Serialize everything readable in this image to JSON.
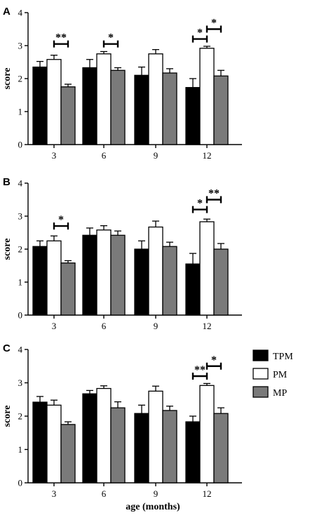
{
  "xlabel": "age (months)",
  "colors": {
    "TPM": "#000000",
    "PM": "#ffffff",
    "MP": "#7a7a7a"
  },
  "legend": [
    "TPM",
    "PM",
    "MP"
  ],
  "chart_data": [
    {
      "type": "bar",
      "panel": "A",
      "ylabel": "score",
      "ylim": [
        0,
        4
      ],
      "yticks": [
        "0",
        "1",
        "2",
        "3",
        "4"
      ],
      "categories": [
        "3",
        "6",
        "9",
        "12"
      ],
      "series": [
        {
          "name": "TPM",
          "values": [
            2.35,
            2.33,
            2.1,
            1.73
          ],
          "errors": [
            0.17,
            0.25,
            0.25,
            0.27
          ]
        },
        {
          "name": "PM",
          "values": [
            2.58,
            2.75,
            2.75,
            2.92
          ],
          "errors": [
            0.13,
            0.07,
            0.13,
            0.06
          ]
        },
        {
          "name": "MP",
          "values": [
            1.75,
            2.25,
            2.17,
            2.08
          ],
          "errors": [
            0.08,
            0.08,
            0.13,
            0.17
          ]
        }
      ],
      "annotations": [
        {
          "category": 0,
          "from": 1,
          "to": 2,
          "text": "**",
          "y": 3.05
        },
        {
          "category": 1,
          "from": 1,
          "to": 2,
          "text": "*",
          "y": 3.05
        },
        {
          "category": 3,
          "from": 0,
          "to": 1,
          "text": "*",
          "y": 3.2
        },
        {
          "category": 3,
          "from": 1,
          "to": 2,
          "text": "*",
          "y": 3.5
        }
      ]
    },
    {
      "type": "bar",
      "panel": "B",
      "ylabel": "score",
      "ylim": [
        0,
        4
      ],
      "yticks": [
        "0",
        "1",
        "2",
        "3",
        "4"
      ],
      "categories": [
        "3",
        "6",
        "9",
        "12"
      ],
      "series": [
        {
          "name": "TPM",
          "values": [
            2.08,
            2.42,
            2.0,
            1.55
          ],
          "errors": [
            0.17,
            0.22,
            0.25,
            0.32
          ]
        },
        {
          "name": "PM",
          "values": [
            2.25,
            2.58,
            2.67,
            2.83
          ],
          "errors": [
            0.15,
            0.13,
            0.18,
            0.08
          ]
        },
        {
          "name": "MP",
          "values": [
            1.58,
            2.42,
            2.08,
            2.0
          ],
          "errors": [
            0.07,
            0.13,
            0.13,
            0.17
          ]
        }
      ],
      "annotations": [
        {
          "category": 0,
          "from": 1,
          "to": 2,
          "text": "*",
          "y": 2.7
        },
        {
          "category": 3,
          "from": 0,
          "to": 1,
          "text": "*",
          "y": 3.2
        },
        {
          "category": 3,
          "from": 1,
          "to": 2,
          "text": "**",
          "y": 3.5
        }
      ]
    },
    {
      "type": "bar",
      "panel": "C",
      "ylabel": "score",
      "ylim": [
        0,
        4
      ],
      "yticks": [
        "0",
        "1",
        "2",
        "3",
        "4"
      ],
      "categories": [
        "3",
        "6",
        "9",
        "12"
      ],
      "series": [
        {
          "name": "TPM",
          "values": [
            2.42,
            2.67,
            2.08,
            1.83
          ],
          "errors": [
            0.17,
            0.1,
            0.25,
            0.17
          ]
        },
        {
          "name": "PM",
          "values": [
            2.33,
            2.83,
            2.75,
            2.92
          ],
          "errors": [
            0.15,
            0.08,
            0.15,
            0.06
          ]
        },
        {
          "name": "MP",
          "values": [
            1.75,
            2.25,
            2.17,
            2.08
          ],
          "errors": [
            0.08,
            0.18,
            0.13,
            0.17
          ]
        }
      ],
      "annotations": [
        {
          "category": 3,
          "from": 0,
          "to": 1,
          "text": "**",
          "y": 3.2
        },
        {
          "category": 3,
          "from": 1,
          "to": 2,
          "text": "*",
          "y": 3.5
        }
      ]
    }
  ]
}
